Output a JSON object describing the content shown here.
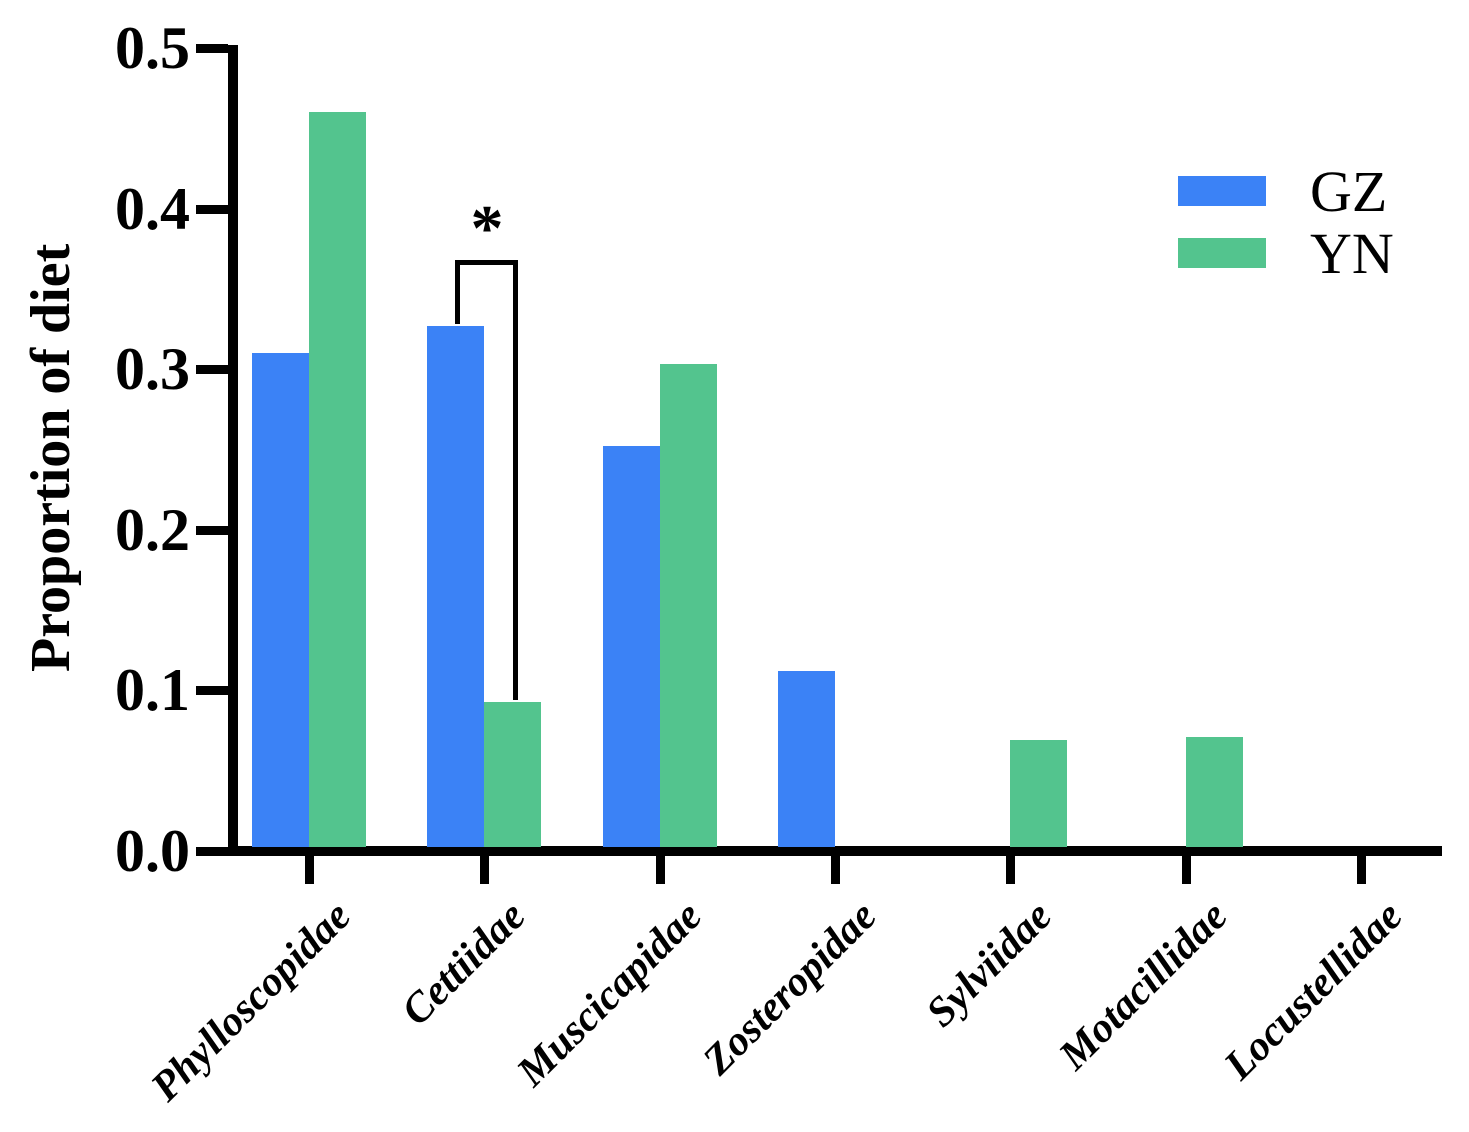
{
  "figure": {
    "background_color": "#ffffff",
    "axis_color": "#000000"
  },
  "legend": {
    "position": "upper right",
    "items": [
      {
        "label": "GZ",
        "color": "#3B82F6"
      },
      {
        "label": "YN",
        "color": "#53C48E"
      }
    ]
  },
  "chart_data": {
    "type": "bar",
    "title": "",
    "xlabel": "",
    "ylabel": "Proportion of diet",
    "ylim": [
      0,
      0.5
    ],
    "yticks": [
      0.0,
      0.1,
      0.2,
      0.3,
      0.4,
      0.5
    ],
    "grid": false,
    "legend_position": "upper right",
    "categories": [
      "Phylloscopidae",
      "Cettiidae",
      "Muscicapidae",
      "Zosteropidae",
      "Sylviidae",
      "Motacillidae",
      "Locustellidae"
    ],
    "series": [
      {
        "name": "GZ",
        "color": "#3B82F6",
        "values": [
          0.31,
          0.327,
          0.252,
          0.112,
          0,
          0,
          0
        ]
      },
      {
        "name": "YN",
        "color": "#53C48E",
        "values": [
          0.46,
          0.093,
          0.303,
          0,
          0.069,
          0.071,
          0
        ]
      }
    ],
    "significance": {
      "symbol": "*",
      "category": "Cettiidae",
      "between_series": [
        "GZ",
        "YN"
      ]
    }
  }
}
